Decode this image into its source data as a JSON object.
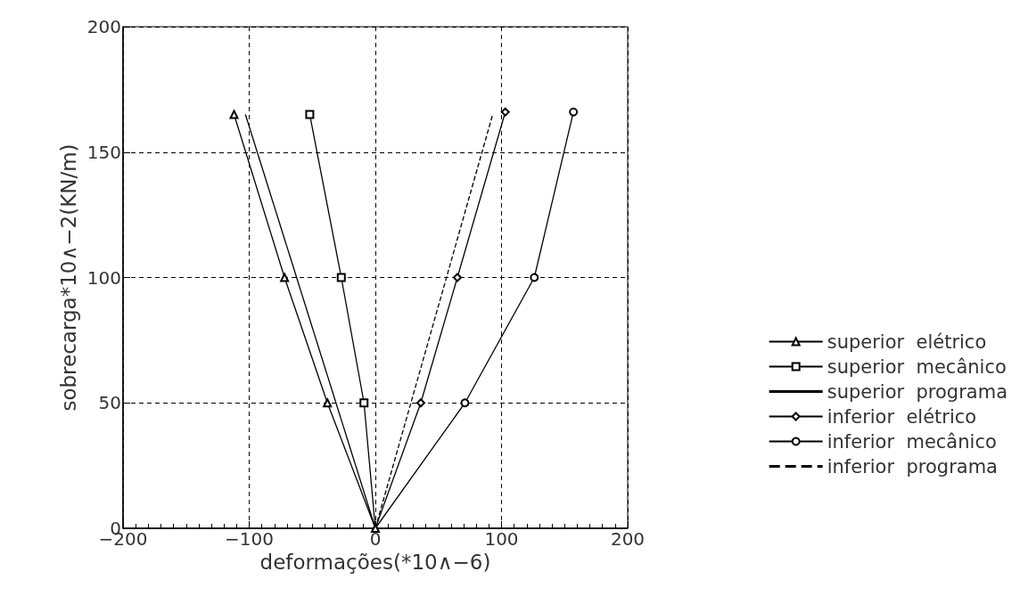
{
  "chart_data": {
    "type": "line",
    "xlabel": "deformações(*10∧−6)",
    "ylabel": "sobrecarga*10∧−2(KN/m)",
    "xlim": [
      -200,
      200
    ],
    "xticks": [
      -200,
      -100,
      0,
      100,
      200
    ],
    "ylim": [
      0,
      200
    ],
    "yticks": [
      0,
      50,
      100,
      150,
      200
    ],
    "grid": true,
    "legend": "right",
    "series": [
      {
        "name": "superior  elétrico",
        "color": "#000000",
        "marker": "triangle",
        "line_style": "solid",
        "x": [
          0,
          -38,
          -72,
          -112
        ],
        "values": [
          0,
          50,
          100,
          165
        ]
      },
      {
        "name": "superior  mecânico",
        "color": "#000000",
        "marker": "square",
        "line_style": "solid",
        "x": [
          0,
          -9,
          -27,
          -52
        ],
        "values": [
          0,
          50,
          100,
          165
        ]
      },
      {
        "name": "superior  programa",
        "color": "#000000",
        "marker": "none",
        "line_style": "solid",
        "x": [
          0,
          -103
        ],
        "values": [
          0,
          165
        ]
      },
      {
        "name": "inferior  elétrico",
        "color": "#000000",
        "marker": "diamond",
        "line_style": "solid",
        "x": [
          0,
          36,
          65,
          103
        ],
        "values": [
          0,
          50,
          100,
          166
        ]
      },
      {
        "name": "inferior  mecânico",
        "color": "#000000",
        "marker": "circle",
        "line_style": "solid",
        "x": [
          0,
          71,
          126,
          157
        ],
        "values": [
          0,
          50,
          100,
          166
        ]
      },
      {
        "name": "inferior  programa",
        "color": "#000000",
        "marker": "none",
        "line_style": "dashed",
        "x": [
          0,
          93
        ],
        "values": [
          0,
          165
        ]
      }
    ]
  }
}
